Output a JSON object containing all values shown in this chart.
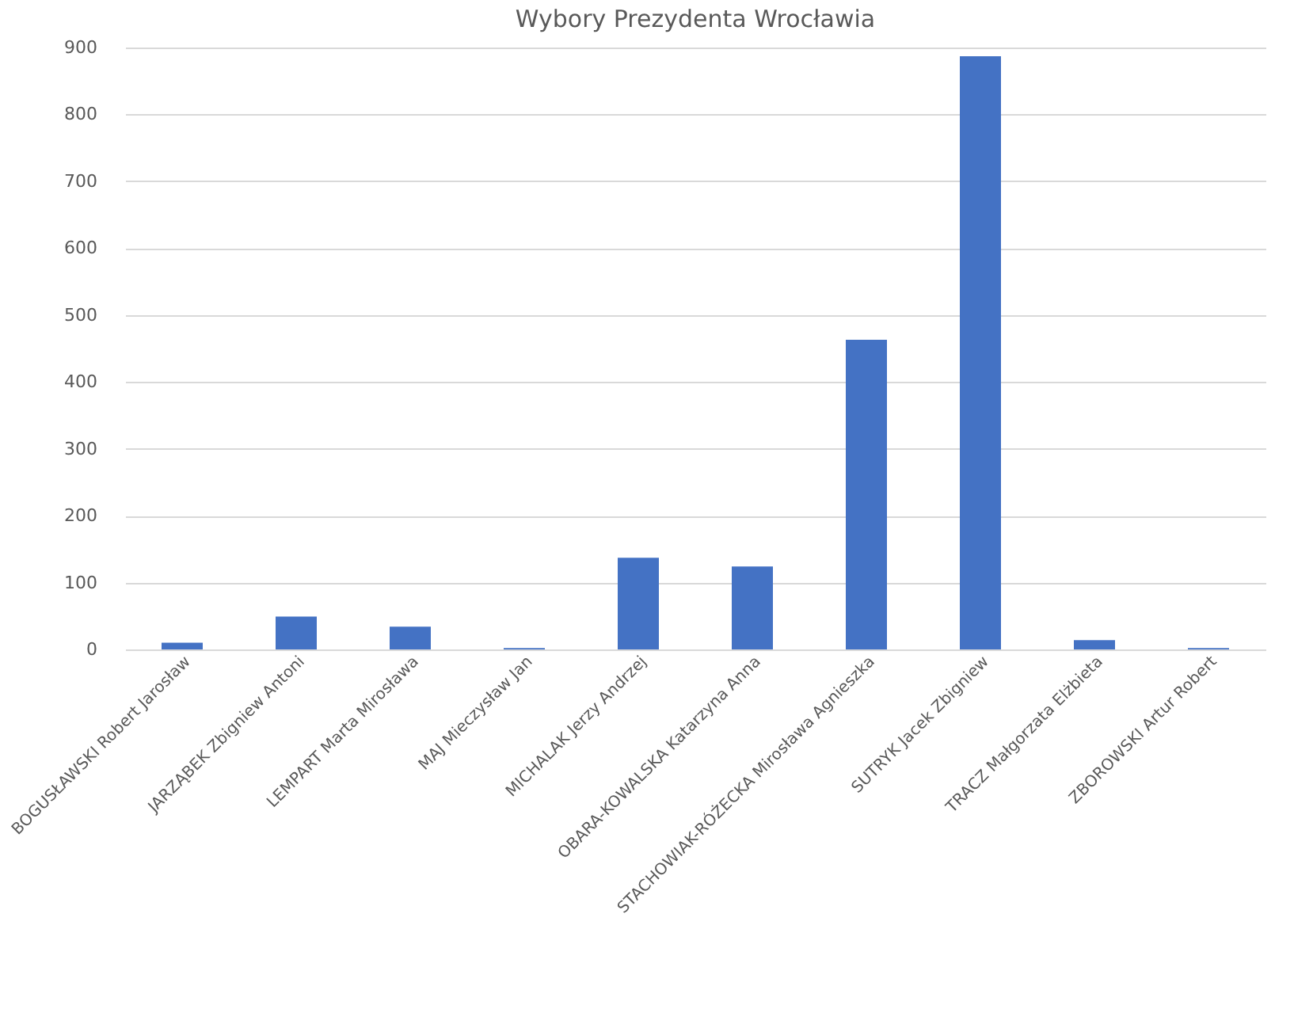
{
  "chart_data": {
    "type": "bar",
    "title": "Wybory Prezydenta Wrocławia",
    "categories": [
      "BOGUSŁAWSKI Robert Jarosław",
      "JARZĄBEK Zbigniew Antoni",
      "LEMPART Marta Mirosława",
      "MAJ Mieczysław Jan",
      "MICHALAK Jerzy Andrzej",
      "OBARA-KOWALSKA Katarzyna Anna",
      "STACHOWIAK-RÓŻECKA Mirosława Agnieszka",
      "SUTRYK Jacek Zbigniew",
      "TRACZ Małgorzata Elżbieta",
      "ZBOROWSKI Artur Robert"
    ],
    "values": [
      10,
      49,
      34,
      2,
      137,
      124,
      463,
      887,
      14,
      2
    ],
    "color": "#4472c4",
    "ylim": [
      0,
      900
    ],
    "yticks": [
      0,
      100,
      200,
      300,
      400,
      500,
      600,
      700,
      800,
      900
    ],
    "grid": "y"
  }
}
